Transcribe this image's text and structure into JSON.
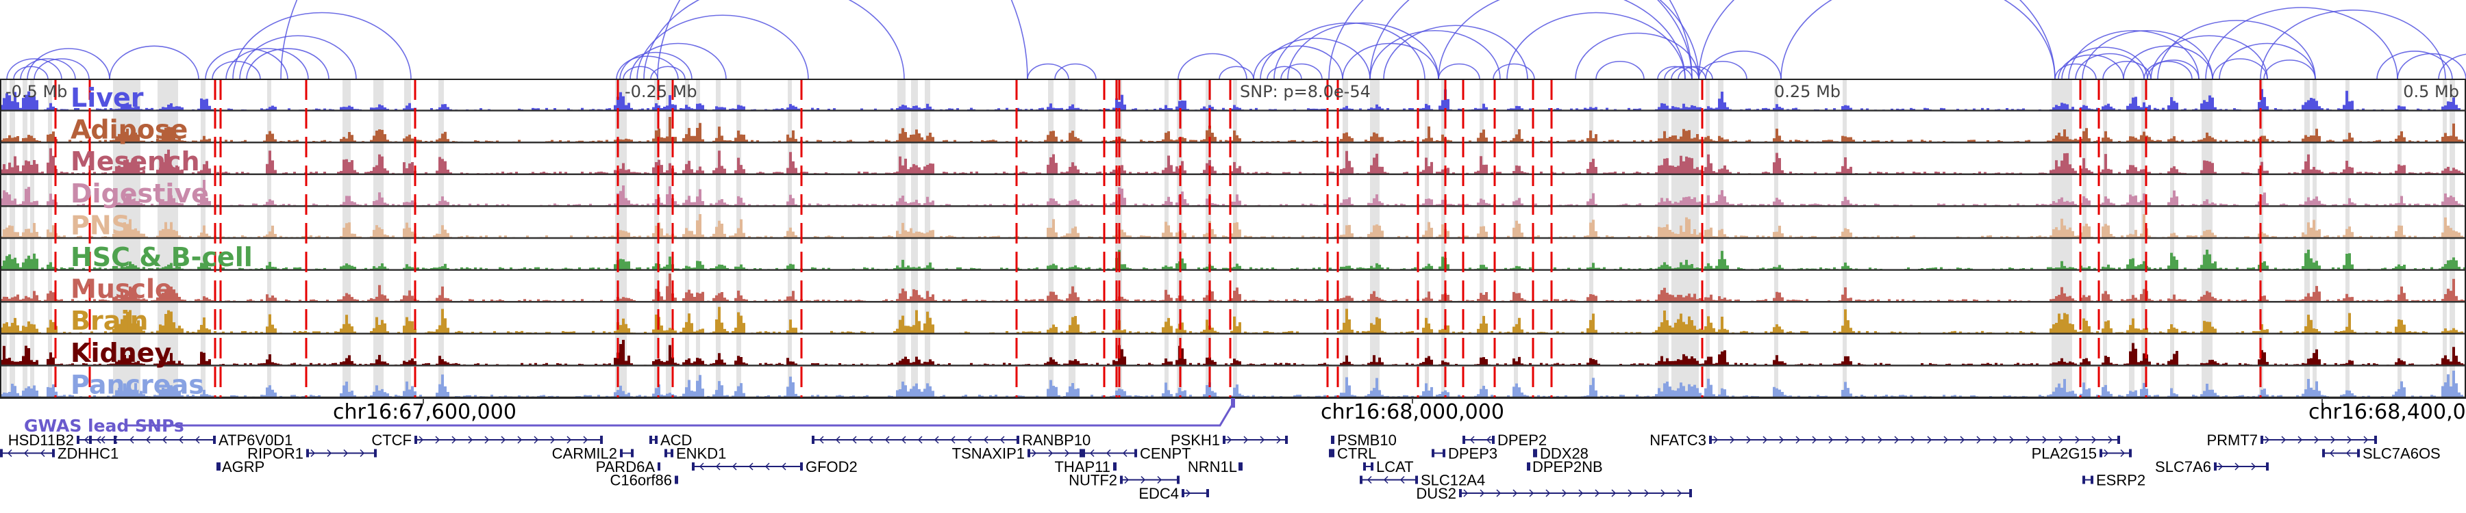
{
  "axis": {
    "offsets": [
      "-0.5 Mb",
      "-0.25 Mb",
      "0.25 Mb",
      "0.5 Mb"
    ],
    "snp_label": "SNP: p=8.0e-54"
  },
  "tracks": [
    {
      "label": "Liver",
      "color": "#5252e0"
    },
    {
      "label": "Adipose",
      "color": "#b5603a"
    },
    {
      "label": "Mesench",
      "color": "#b85a6e"
    },
    {
      "label": "Digestive",
      "color": "#c98aaa"
    },
    {
      "label": "PNS",
      "color": "#e2b896"
    },
    {
      "label": "HSC & B-cell",
      "color": "#4ea24e"
    },
    {
      "label": "Muscle",
      "color": "#c4635a"
    },
    {
      "label": "Brain",
      "color": "#c8952a"
    },
    {
      "label": "Kidney",
      "color": "#6b0000"
    },
    {
      "label": "Pancreas",
      "color": "#88a2e2"
    }
  ],
  "coordinates": [
    "chr16:67,600,000",
    "chr16:68,000,000",
    "chr16:68,400,000"
  ],
  "gwas": {
    "label": "GWAS lead SNPs",
    "color": "#6a5acd"
  },
  "genes": [
    {
      "name": "HSD11B2",
      "strand": "-"
    },
    {
      "name": "ATP6V0D1",
      "strand": "-"
    },
    {
      "name": "CTCF",
      "strand": "+"
    },
    {
      "name": "ACD",
      "strand": "-"
    },
    {
      "name": "RANBP10",
      "strand": "-"
    },
    {
      "name": "PSKH1",
      "strand": "+"
    },
    {
      "name": "PSMB10",
      "strand": "-"
    },
    {
      "name": "DPEP2",
      "strand": "-"
    },
    {
      "name": "NFATC3",
      "strand": "+"
    },
    {
      "name": "PRMT7",
      "strand": "+"
    },
    {
      "name": "ZDHHC1",
      "strand": "-"
    },
    {
      "name": "RIPOR1",
      "strand": "+"
    },
    {
      "name": "CARMIL2",
      "strand": "+"
    },
    {
      "name": "ENKD1",
      "strand": "-"
    },
    {
      "name": "TSNAXIP1",
      "strand": "+"
    },
    {
      "name": "CENPT",
      "strand": "-"
    },
    {
      "name": "CTRL",
      "strand": "-"
    },
    {
      "name": "DPEP3",
      "strand": "-"
    },
    {
      "name": "DDX28",
      "strand": "+"
    },
    {
      "name": "PLA2G15",
      "strand": "+"
    },
    {
      "name": "SLC7A6OS",
      "strand": "-"
    },
    {
      "name": "AGRP",
      "strand": "-"
    },
    {
      "name": "PARD6A",
      "strand": "+"
    },
    {
      "name": "GFOD2",
      "strand": "-"
    },
    {
      "name": "THAP11",
      "strand": "+"
    },
    {
      "name": "NRN1L",
      "strand": "+"
    },
    {
      "name": "LCAT",
      "strand": "-"
    },
    {
      "name": "DPEP2NB",
      "strand": "+"
    },
    {
      "name": "SLC7A6",
      "strand": "+"
    },
    {
      "name": "C16orf86",
      "strand": "+"
    },
    {
      "name": "NUTF2",
      "strand": "+"
    },
    {
      "name": "SLC12A4",
      "strand": "-"
    },
    {
      "name": "ESRP2",
      "strand": "-"
    },
    {
      "name": "EDC4",
      "strand": "+"
    },
    {
      "name": "DUS2",
      "strand": "+"
    }
  ]
}
